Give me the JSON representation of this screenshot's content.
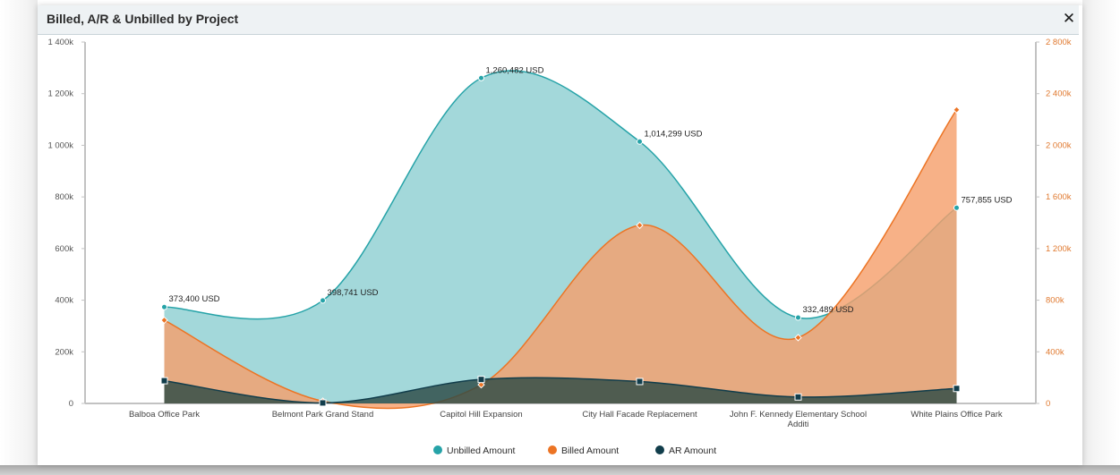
{
  "panel": {
    "title": "Billed, A/R & Unbilled by Project",
    "close_icon": "close-icon"
  },
  "chart_data": {
    "type": "area",
    "title": "",
    "xlabel": "",
    "ylabel": "",
    "categories": [
      "Balboa Office Park",
      "Belmont Park Grand Stand",
      "Capitol Hill Expansion",
      "City Hall Facade Replacement",
      "John F. Kennedy Elementary School Additi",
      "White Plains Office Park"
    ],
    "category_lines": [
      [
        "Balboa Office Park"
      ],
      [
        "Belmont Park Grand Stand"
      ],
      [
        "Capitol Hill Expansion"
      ],
      [
        "City Hall Facade Replacement"
      ],
      [
        "John F. Kennedy Elementary School",
        "Additi"
      ],
      [
        "White Plains Office Park"
      ]
    ],
    "y_left": {
      "min": 0,
      "max": 1400000,
      "ticks": [
        0,
        200000,
        400000,
        600000,
        800000,
        1000000,
        1200000,
        1400000
      ],
      "tick_labels": [
        "0",
        "200k",
        "400k",
        "600k",
        "800k",
        "1 000k",
        "1 200k",
        "1 400k"
      ]
    },
    "y_right": {
      "min": 0,
      "max": 2800000,
      "ticks": [
        0,
        400000,
        800000,
        1200000,
        1600000,
        2000000,
        2400000,
        2800000
      ],
      "tick_labels": [
        "0",
        "400k",
        "800k",
        "1 200k",
        "1 600k",
        "2 000k",
        "2 400k",
        "2 800k"
      ]
    },
    "grid": false,
    "legend_position": "bottom-center",
    "series": [
      {
        "name": "Unbilled Amount",
        "axis": "left",
        "color": "#26a3a8",
        "fill": "#8fcfd2",
        "marker": "circle",
        "values": [
          373400,
          398741,
          1260482,
          1014299,
          332489,
          757855
        ],
        "data_labels": [
          "373,400 USD",
          "398,741 USD",
          "1,260,482 USD",
          "1,014,299 USD",
          "332,489 USD",
          "757,855 USD"
        ]
      },
      {
        "name": "Billed Amount",
        "axis": "right",
        "color": "#ec7424",
        "fill": "#f5a06c",
        "marker": "diamond",
        "values": [
          645000,
          18000,
          145000,
          1380000,
          510000,
          2275000
        ]
      },
      {
        "name": "AR Amount",
        "axis": "left",
        "color": "#113d4b",
        "fill": "#2d4a45",
        "marker": "square",
        "values": [
          88000,
          2000,
          93000,
          85000,
          25000,
          58000
        ]
      }
    ]
  }
}
